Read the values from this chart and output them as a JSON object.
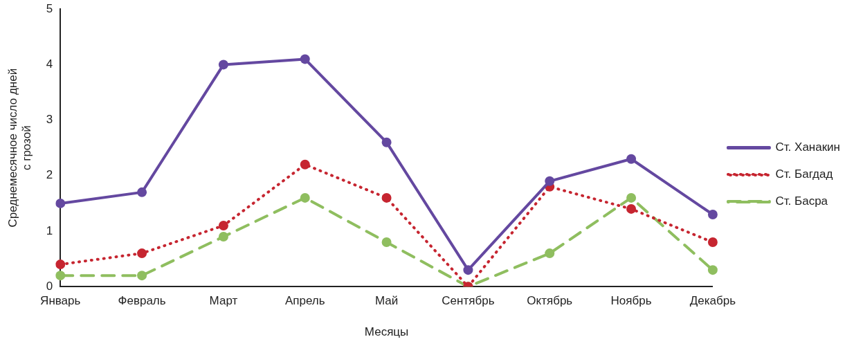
{
  "chart_data": {
    "type": "line",
    "xlabel": "Месяцы",
    "ylabel": "Среднемесячное число дней с грозой",
    "categories": [
      "Январь",
      "Февраль",
      "Март",
      "Апрель",
      "Май",
      "Сентябрь",
      "Октябрь",
      "Ноябрь",
      "Декабрь"
    ],
    "series": [
      {
        "name": "Ст. Ханакин",
        "color": "#6448a0",
        "line_style": "solid",
        "values": [
          1.5,
          1.7,
          4.0,
          4.1,
          2.6,
          0.3,
          1.9,
          2.3,
          1.3
        ]
      },
      {
        "name": "Ст. Багдад",
        "color": "#c62530",
        "line_style": "dotted",
        "values": [
          0.4,
          0.6,
          1.1,
          2.2,
          1.6,
          0.0,
          1.8,
          1.4,
          0.8
        ]
      },
      {
        "name": "Ст. Басра",
        "color": "#8fbe5f",
        "line_style": "dashed",
        "values": [
          0.2,
          0.2,
          0.9,
          1.6,
          0.8,
          0.0,
          0.6,
          1.6,
          0.3
        ]
      }
    ],
    "ylim": [
      0,
      5
    ],
    "yticks": [
      0,
      1,
      2,
      3,
      4,
      5
    ],
    "grid": false,
    "legend": "right",
    "marker": "circle"
  }
}
